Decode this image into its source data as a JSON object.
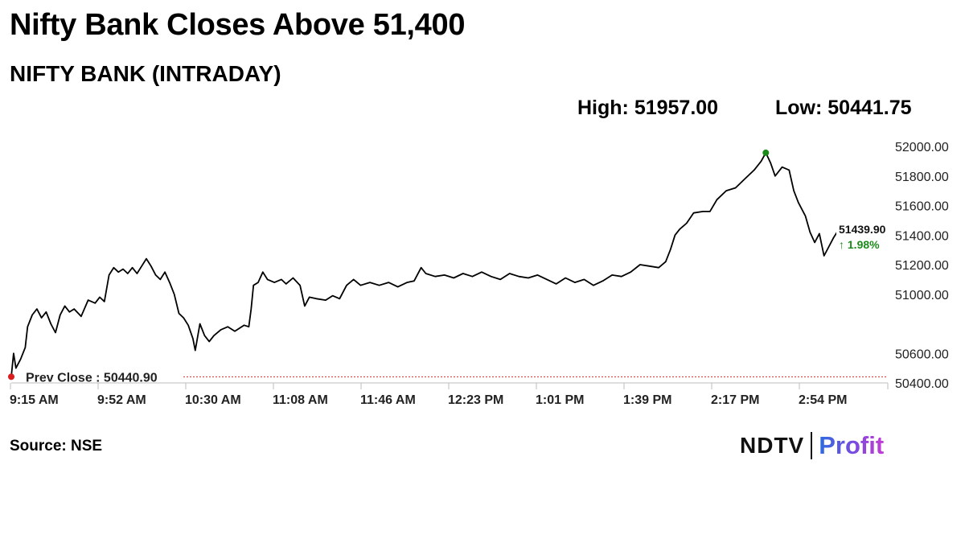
{
  "headline": "Nifty Bank Closes Above 51,400",
  "subtitle": "NIFTY BANK (INTRADAY)",
  "stats": {
    "high": "High: 51957.00",
    "low": "Low: 50441.75"
  },
  "source": "Source: NSE",
  "logo": {
    "brand": "NDTV",
    "product": "Profit"
  },
  "colors": {
    "line": "#000000",
    "prev_close_line": "#d23b3b",
    "high_marker": "#1b8a1b",
    "open_marker": "#d81e1e",
    "last_marker": "#1d2fd6",
    "change_text": "#1b8a1b"
  },
  "chart_data": {
    "type": "line",
    "title": "NIFTY BANK (INTRADAY)",
    "x_ticks": [
      "9:15 AM",
      "9:52 AM",
      "10:30 AM",
      "11:08 AM",
      "11:46 AM",
      "12:23 PM",
      "1:01 PM",
      "1:39 PM",
      "2:17 PM",
      "2:54 PM"
    ],
    "x_range_minutes": [
      0,
      375
    ],
    "y_ticks": [
      "50400.00",
      "50600.00",
      "51000.00",
      "51200.00",
      "51400.00",
      "51600.00",
      "51800.00",
      "52000.00"
    ],
    "y_tick_values": [
      50400,
      50600,
      51000,
      51200,
      51400,
      51600,
      51800,
      52000
    ],
    "y_range": [
      50400,
      52000
    ],
    "prev_close": {
      "label": "Prev Close : 50440.90",
      "value": 50440.9
    },
    "last": {
      "value_label": "51439.90",
      "change_label": "↑ 1.98%",
      "value": 51439.9
    },
    "high_point": {
      "minute": 324,
      "value": 51957
    },
    "series": [
      {
        "points": [
          [
            0,
            50441.75
          ],
          [
            1,
            50600
          ],
          [
            2,
            50500
          ],
          [
            4,
            50560
          ],
          [
            6,
            50640
          ],
          [
            7,
            50780
          ],
          [
            9,
            50860
          ],
          [
            11,
            50900
          ],
          [
            13,
            50840
          ],
          [
            15,
            50880
          ],
          [
            17,
            50800
          ],
          [
            19,
            50740
          ],
          [
            21,
            50860
          ],
          [
            23,
            50920
          ],
          [
            25,
            50880
          ],
          [
            27,
            50900
          ],
          [
            30,
            50850
          ],
          [
            33,
            50960
          ],
          [
            36,
            50940
          ],
          [
            38,
            50980
          ],
          [
            40,
            50950
          ],
          [
            42,
            51130
          ],
          [
            44,
            51180
          ],
          [
            46,
            51150
          ],
          [
            48,
            51170
          ],
          [
            50,
            51140
          ],
          [
            52,
            51180
          ],
          [
            54,
            51140
          ],
          [
            56,
            51190
          ],
          [
            58,
            51240
          ],
          [
            60,
            51190
          ],
          [
            62,
            51130
          ],
          [
            64,
            51100
          ],
          [
            66,
            51150
          ],
          [
            68,
            51080
          ],
          [
            70,
            51000
          ],
          [
            72,
            50870
          ],
          [
            74,
            50840
          ],
          [
            76,
            50790
          ],
          [
            78,
            50700
          ],
          [
            79,
            50620
          ],
          [
            81,
            50800
          ],
          [
            83,
            50720
          ],
          [
            85,
            50680
          ],
          [
            87,
            50720
          ],
          [
            90,
            50760
          ],
          [
            93,
            50780
          ],
          [
            96,
            50750
          ],
          [
            100,
            50790
          ],
          [
            102,
            50780
          ],
          [
            103,
            50900
          ],
          [
            104,
            51060
          ],
          [
            106,
            51080
          ],
          [
            108,
            51150
          ],
          [
            110,
            51100
          ],
          [
            113,
            51080
          ],
          [
            116,
            51100
          ],
          [
            118,
            51070
          ],
          [
            121,
            51110
          ],
          [
            124,
            51060
          ],
          [
            126,
            50920
          ],
          [
            128,
            50980
          ],
          [
            131,
            50970
          ],
          [
            135,
            50960
          ],
          [
            138,
            50990
          ],
          [
            141,
            50970
          ],
          [
            144,
            51060
          ],
          [
            147,
            51100
          ],
          [
            150,
            51060
          ],
          [
            154,
            51080
          ],
          [
            158,
            51060
          ],
          [
            162,
            51080
          ],
          [
            166,
            51050
          ],
          [
            170,
            51080
          ],
          [
            173,
            51090
          ],
          [
            176,
            51180
          ],
          [
            178,
            51140
          ],
          [
            182,
            51120
          ],
          [
            186,
            51130
          ],
          [
            190,
            51110
          ],
          [
            194,
            51140
          ],
          [
            198,
            51120
          ],
          [
            202,
            51150
          ],
          [
            206,
            51120
          ],
          [
            210,
            51100
          ],
          [
            214,
            51140
          ],
          [
            218,
            51120
          ],
          [
            222,
            51110
          ],
          [
            226,
            51130
          ],
          [
            230,
            51100
          ],
          [
            234,
            51070
          ],
          [
            238,
            51110
          ],
          [
            242,
            51080
          ],
          [
            246,
            51100
          ],
          [
            250,
            51060
          ],
          [
            254,
            51090
          ],
          [
            258,
            51130
          ],
          [
            262,
            51120
          ],
          [
            266,
            51150
          ],
          [
            270,
            51200
          ],
          [
            274,
            51190
          ],
          [
            278,
            51180
          ],
          [
            281,
            51220
          ],
          [
            283,
            51300
          ],
          [
            285,
            51400
          ],
          [
            287,
            51440
          ],
          [
            290,
            51480
          ],
          [
            293,
            51550
          ],
          [
            297,
            51560
          ],
          [
            300,
            51560
          ],
          [
            303,
            51640
          ],
          [
            307,
            51700
          ],
          [
            311,
            51720
          ],
          [
            315,
            51780
          ],
          [
            319,
            51840
          ],
          [
            322,
            51900
          ],
          [
            324,
            51957
          ],
          [
            326,
            51890
          ],
          [
            328,
            51800
          ],
          [
            331,
            51860
          ],
          [
            334,
            51840
          ],
          [
            336,
            51700
          ],
          [
            338,
            51620
          ],
          [
            341,
            51530
          ],
          [
            343,
            51420
          ],
          [
            345,
            51350
          ],
          [
            347,
            51410
          ],
          [
            349,
            51260
          ],
          [
            351,
            51320
          ],
          [
            353,
            51380
          ],
          [
            355,
            51430
          ],
          [
            358,
            51439.9
          ]
        ]
      }
    ]
  }
}
